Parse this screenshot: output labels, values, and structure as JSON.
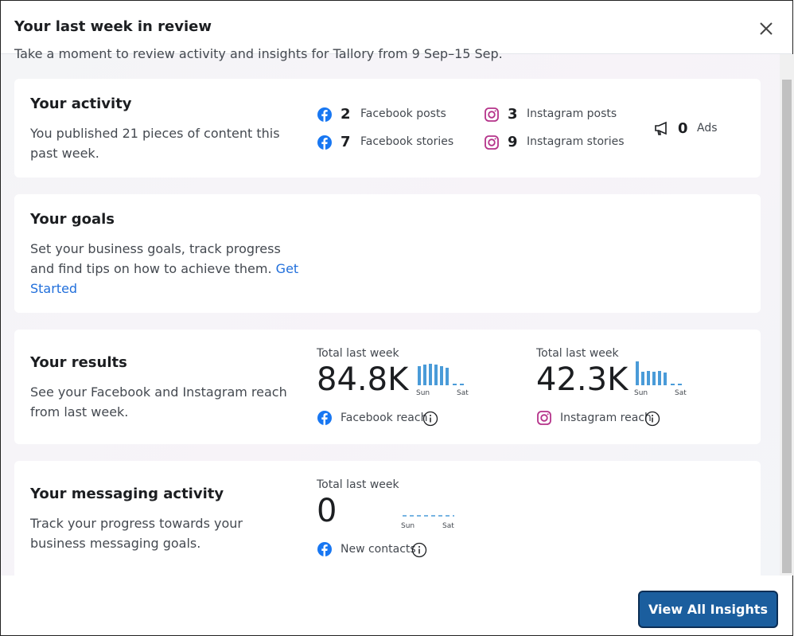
{
  "header": {
    "title": "Your last week in review"
  },
  "intro": "Take a moment to review activity and insights for Tallory from 9 Sep–15 Sep.",
  "activity": {
    "title": "Your activity",
    "description": "You published 21 pieces of content this past week.",
    "stats": [
      {
        "count": 2,
        "label": "Facebook posts"
      },
      {
        "count": 7,
        "label": "Facebook stories"
      },
      {
        "count": 3,
        "label": "Instagram posts"
      },
      {
        "count": 9,
        "label": "Instagram stories"
      },
      {
        "count": 0,
        "label": "Ads"
      }
    ]
  },
  "goals": {
    "title": "Your goals",
    "description": "Set your business goals, track progress and find tips on how to achieve them.",
    "link": "Get Started"
  },
  "results": {
    "title": "Your results",
    "description": "See your Facebook and Instagram reach from last week.",
    "metrics": [
      {
        "caption": "Total last week",
        "value": "84.8K",
        "start": "Sun",
        "end": "Sat",
        "label": "Facebook reach"
      },
      {
        "caption": "Total last week",
        "value": "42.3K",
        "start": "Sun",
        "end": "Sat",
        "label": "Instagram reach"
      }
    ]
  },
  "messaging": {
    "title": "Your messaging activity",
    "description": "Track your progress towards your business messaging goals.",
    "metric": {
      "caption": "Total last week",
      "value": "0",
      "start": "Sun",
      "end": "Sat",
      "label": "New contacts"
    }
  },
  "footer": {
    "button": "View All Insights"
  }
}
